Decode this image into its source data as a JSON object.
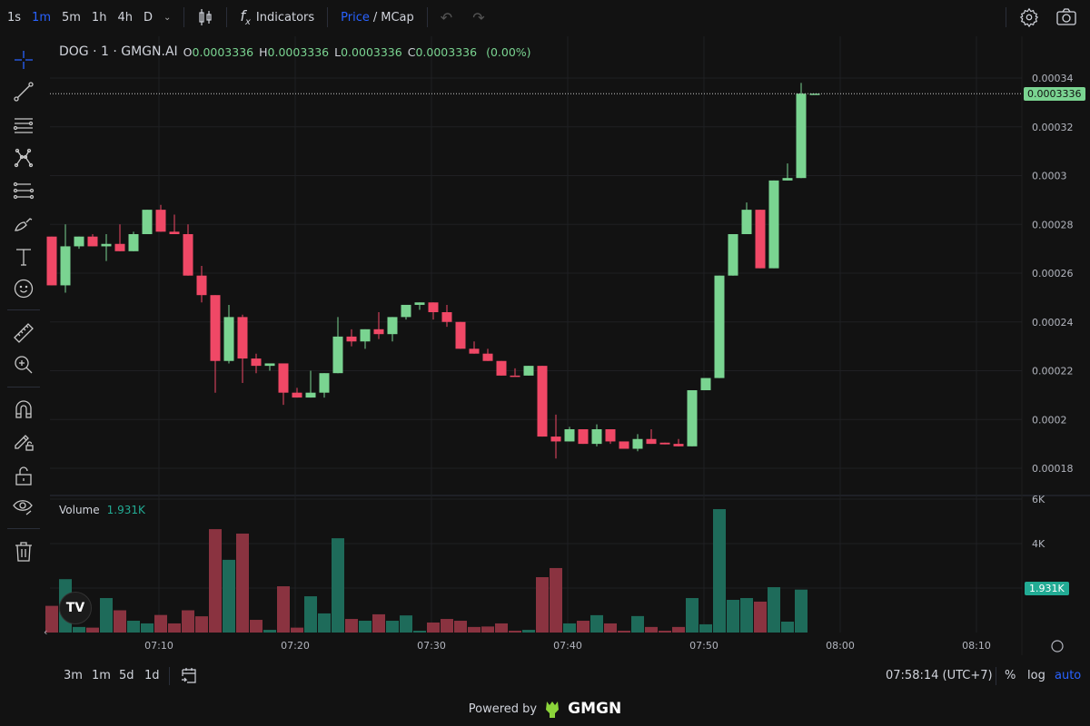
{
  "toolbar": {
    "timeframes": [
      {
        "label": "1s",
        "active": false
      },
      {
        "label": "1m",
        "active": true
      },
      {
        "label": "5m",
        "active": false
      },
      {
        "label": "1h",
        "active": false
      },
      {
        "label": "4h",
        "active": false
      },
      {
        "label": "D",
        "active": false
      }
    ],
    "indicators_label": "Indicators",
    "price_label": "Price",
    "slash": "/",
    "mcap_label": "MCap"
  },
  "left_tools": [
    "crosshair-icon",
    "trend-line-icon",
    "horizontal-lines-icon",
    "pattern-icon",
    "fib-icon",
    "brush-icon",
    "text-icon",
    "emoji-icon",
    "ruler-icon",
    "zoom-in-icon",
    "magnet-icon",
    "lock-drawing-icon",
    "lock-icon",
    "eye-icon",
    "trash-icon"
  ],
  "legend": {
    "symbol": "DOG · 1 · GMGN.AI",
    "o_label": "O",
    "o": "0.0003336",
    "h_label": "H",
    "h": "0.0003336",
    "l_label": "L",
    "l": "0.0003336",
    "c_label": "C",
    "c": "0.0003336",
    "change": "(0.00%)"
  },
  "volume_legend": {
    "label": "Volume",
    "value": "1.931K"
  },
  "price_tag": "0.0003336",
  "volume_tag": "1.931K",
  "colors": {
    "up": "#7ad491",
    "down": "#f04866",
    "vol_up": "#1e6b5a",
    "vol_down": "#8a3340",
    "accent": "#2962ff"
  },
  "chart_data": {
    "type": "candlestick",
    "price_axis": {
      "ticks": [
        "0.00034",
        "0.00032",
        "0.0003",
        "0.00028",
        "0.00026",
        "0.00024",
        "0.00022",
        "0.0002",
        "0.00018"
      ],
      "range": [
        0.000171,
        0.000345
      ]
    },
    "volume_axis": {
      "ticks": [
        "6K",
        "4K"
      ],
      "unit": "K"
    },
    "time_ticks": [
      "07:10",
      "07:20",
      "07:30",
      "07:40",
      "07:50",
      "08:00",
      "08:10"
    ],
    "grid": true,
    "columns": [
      "time",
      "open",
      "high",
      "low",
      "close",
      "volume_k"
    ],
    "candles": [
      [
        "07:02",
        0.000275,
        0.000275,
        0.000255,
        0.000255,
        1.2
      ],
      [
        "07:03",
        0.000255,
        0.00028,
        0.000252,
        0.000271,
        2.4
      ],
      [
        "07:04",
        0.000271,
        0.000275,
        0.00027,
        0.000275,
        0.25
      ],
      [
        "07:05",
        0.000275,
        0.000276,
        0.000271,
        0.000271,
        0.22
      ],
      [
        "07:06",
        0.000271,
        0.000276,
        0.000265,
        0.000272,
        1.55
      ],
      [
        "07:07",
        0.000272,
        0.00028,
        0.000269,
        0.000269,
        1.0
      ],
      [
        "07:08",
        0.000269,
        0.000277,
        0.000269,
        0.000276,
        0.53
      ],
      [
        "07:09",
        0.000276,
        0.000286,
        0.000276,
        0.000286,
        0.41
      ],
      [
        "07:10",
        0.000286,
        0.000288,
        0.000277,
        0.000277,
        0.79
      ],
      [
        "07:11",
        0.000277,
        0.000284,
        0.000276,
        0.000276,
        0.41
      ],
      [
        "07:12",
        0.000276,
        0.00028,
        0.000259,
        0.000259,
        1.0
      ],
      [
        "07:13",
        0.000259,
        0.000263,
        0.000248,
        0.000251,
        0.73
      ],
      [
        "07:14",
        0.000251,
        0.000251,
        0.000211,
        0.000224,
        4.65
      ],
      [
        "07:15",
        0.000224,
        0.000247,
        0.000223,
        0.000242,
        3.27
      ],
      [
        "07:16",
        0.000242,
        0.000243,
        0.000215,
        0.000225,
        4.45
      ],
      [
        "07:17",
        0.000225,
        0.000227,
        0.000219,
        0.000222,
        0.57
      ],
      [
        "07:18",
        0.000222,
        0.000223,
        0.00022,
        0.000223,
        0.12
      ],
      [
        "07:19",
        0.000223,
        0.000223,
        0.000206,
        0.000211,
        2.08
      ],
      [
        "07:20",
        0.000211,
        0.000213,
        0.000209,
        0.000209,
        0.22
      ],
      [
        "07:21",
        0.000209,
        0.00022,
        0.000209,
        0.000211,
        1.63
      ],
      [
        "07:22",
        0.000211,
        0.000219,
        0.000209,
        0.000219,
        0.86
      ],
      [
        "07:23",
        0.000219,
        0.000242,
        0.000219,
        0.000234,
        4.24
      ],
      [
        "07:24",
        0.000234,
        0.000237,
        0.00023,
        0.000232,
        0.61
      ],
      [
        "07:25",
        0.000232,
        0.000237,
        0.000229,
        0.000237,
        0.53
      ],
      [
        "07:26",
        0.000237,
        0.000244,
        0.000233,
        0.000235,
        0.82
      ],
      [
        "07:27",
        0.000235,
        0.000242,
        0.000232,
        0.000242,
        0.53
      ],
      [
        "07:28",
        0.000242,
        0.000247,
        0.000241,
        0.000247,
        0.77
      ],
      [
        "07:29",
        0.000247,
        0.000248,
        0.000245,
        0.000248,
        0.08
      ],
      [
        "07:30",
        0.000248,
        0.000248,
        0.000241,
        0.000244,
        0.45
      ],
      [
        "07:31",
        0.000244,
        0.000247,
        0.000238,
        0.00024,
        0.61
      ],
      [
        "07:32",
        0.00024,
        0.00024,
        0.000229,
        0.000229,
        0.53
      ],
      [
        "07:33",
        0.000229,
        0.000232,
        0.000227,
        0.000227,
        0.25
      ],
      [
        "07:34",
        0.000227,
        0.000229,
        0.000224,
        0.000224,
        0.27
      ],
      [
        "07:35",
        0.000224,
        0.000224,
        0.000218,
        0.000218,
        0.41
      ],
      [
        "07:36",
        0.000218,
        0.000221,
        0.000218,
        0.0002178,
        0.08
      ],
      [
        "07:37",
        0.000218,
        0.000222,
        0.000218,
        0.000222,
        0.12
      ],
      [
        "07:38",
        0.000222,
        0.000222,
        0.000193,
        0.000193,
        2.49
      ],
      [
        "07:39",
        0.000193,
        0.000202,
        0.000184,
        0.000191,
        2.9
      ],
      [
        "07:40",
        0.000191,
        0.000197,
        0.000191,
        0.000196,
        0.41
      ],
      [
        "07:41",
        0.000196,
        0.000196,
        0.00019,
        0.00019,
        0.53
      ],
      [
        "07:42",
        0.00019,
        0.000198,
        0.000189,
        0.000196,
        0.78
      ],
      [
        "07:43",
        0.000196,
        0.000196,
        0.00019,
        0.000191,
        0.41
      ],
      [
        "07:44",
        0.000191,
        0.000191,
        0.000188,
        0.000188,
        0.08
      ],
      [
        "07:45",
        0.000188,
        0.000194,
        0.000187,
        0.000192,
        0.74
      ],
      [
        "07:46",
        0.000192,
        0.000196,
        0.00019,
        0.00019,
        0.25
      ],
      [
        "07:47",
        0.0001905,
        0.0001905,
        0.0001898,
        0.0001898,
        0.08
      ],
      [
        "07:48",
        0.00019,
        0.000192,
        0.000189,
        0.000189,
        0.25
      ],
      [
        "07:49",
        0.000189,
        0.000212,
        0.000189,
        0.000212,
        1.55
      ],
      [
        "07:50",
        0.000212,
        0.000217,
        0.000212,
        0.000217,
        0.37
      ],
      [
        "07:51",
        0.000217,
        0.000259,
        0.000217,
        0.000259,
        5.55
      ],
      [
        "07:52",
        0.000259,
        0.000276,
        0.000259,
        0.000276,
        1.47
      ],
      [
        "07:53",
        0.000276,
        0.000289,
        0.000276,
        0.000286,
        1.55
      ],
      [
        "07:54",
        0.000286,
        0.000286,
        0.000262,
        0.000262,
        1.39
      ],
      [
        "07:55",
        0.000262,
        0.000298,
        0.000262,
        0.000298,
        2.04
      ],
      [
        "07:56",
        0.000298,
        0.000305,
        0.000298,
        0.000299,
        0.49
      ],
      [
        "07:57",
        0.000299,
        0.000338,
        0.000299,
        0.0003336,
        1.931
      ],
      [
        "07:58",
        0.0003336,
        0.0003336,
        0.0003336,
        0.0003336,
        null
      ]
    ]
  },
  "bottom": {
    "ranges": [
      "3m",
      "1m",
      "5d",
      "1d"
    ],
    "clock": "07:58:14 (UTC+7)",
    "percent": "%",
    "log": "log",
    "auto": "auto"
  },
  "footer": {
    "powered_by": "Powered by",
    "brand": "GMGN"
  }
}
